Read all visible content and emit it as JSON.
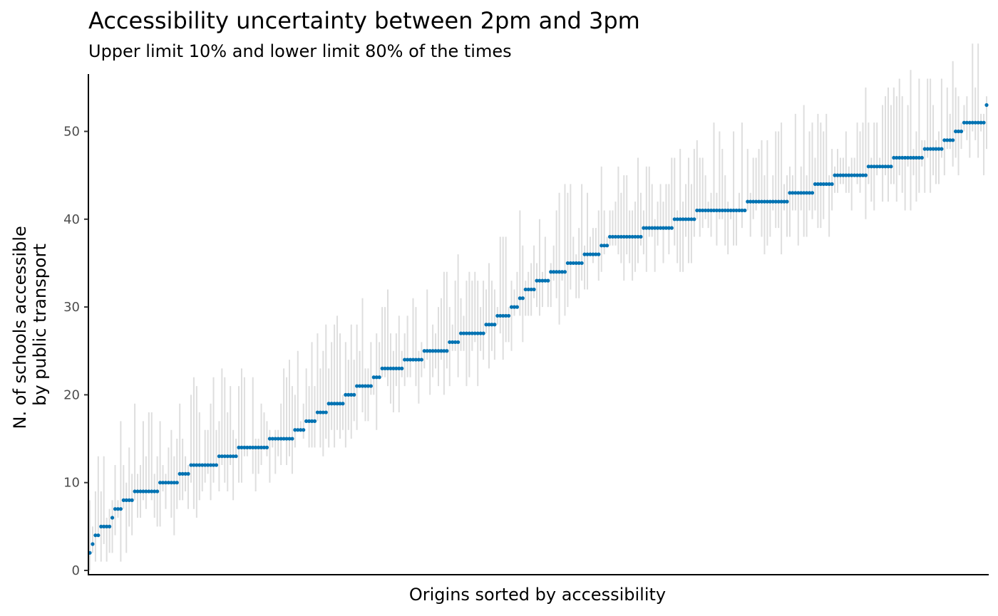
{
  "chart_data": {
    "type": "scatter",
    "title": "Accessibility uncertainty between 2pm and 3pm",
    "subtitle": "Upper limit 10% and lower limit 80% of the times",
    "xlabel": "Origins sorted by accessibility",
    "ylabel_lines": [
      "N. of schools accessible",
      "by public transport"
    ],
    "yticks": [
      0,
      10,
      20,
      30,
      40,
      50
    ],
    "ylim": [
      -0.6,
      56
    ],
    "grid": false,
    "x_ticks_shown": false,
    "colors": {
      "point": "#0072B2",
      "range": "#DEDEDE",
      "axis": "#000000",
      "tick_label": "#4D4D4D"
    },
    "levels": [
      {
        "y": 2,
        "n": 1
      },
      {
        "y": 3,
        "n": 1
      },
      {
        "y": 4,
        "n": 2
      },
      {
        "y": 5,
        "n": 4
      },
      {
        "y": 6,
        "n": 1
      },
      {
        "y": 7,
        "n": 3
      },
      {
        "y": 8,
        "n": 4
      },
      {
        "y": 9,
        "n": 9
      },
      {
        "y": 10,
        "n": 7
      },
      {
        "y": 11,
        "n": 4
      },
      {
        "y": 12,
        "n": 10
      },
      {
        "y": 13,
        "n": 7
      },
      {
        "y": 14,
        "n": 11
      },
      {
        "y": 15,
        "n": 9
      },
      {
        "y": 16,
        "n": 4
      },
      {
        "y": 17,
        "n": 4
      },
      {
        "y": 18,
        "n": 4
      },
      {
        "y": 19,
        "n": 6
      },
      {
        "y": 20,
        "n": 4
      },
      {
        "y": 21,
        "n": 6
      },
      {
        "y": 22,
        "n": 3
      },
      {
        "y": 23,
        "n": 8
      },
      {
        "y": 24,
        "n": 7
      },
      {
        "y": 25,
        "n": 9
      },
      {
        "y": 26,
        "n": 4
      },
      {
        "y": 27,
        "n": 9
      },
      {
        "y": 28,
        "n": 4
      },
      {
        "y": 29,
        "n": 5
      },
      {
        "y": 30,
        "n": 3
      },
      {
        "y": 31,
        "n": 2
      },
      {
        "y": 32,
        "n": 4
      },
      {
        "y": 33,
        "n": 5
      },
      {
        "y": 34,
        "n": 6
      },
      {
        "y": 35,
        "n": 6
      },
      {
        "y": 36,
        "n": 6
      },
      {
        "y": 37,
        "n": 3
      },
      {
        "y": 38,
        "n": 12
      },
      {
        "y": 39,
        "n": 11
      },
      {
        "y": 40,
        "n": 8
      },
      {
        "y": 41,
        "n": 18
      },
      {
        "y": 42,
        "n": 15
      },
      {
        "y": 43,
        "n": 9
      },
      {
        "y": 44,
        "n": 7
      },
      {
        "y": 45,
        "n": 12
      },
      {
        "y": 46,
        "n": 9
      },
      {
        "y": 47,
        "n": 11
      },
      {
        "y": 48,
        "n": 7
      },
      {
        "y": 49,
        "n": 4
      },
      {
        "y": 50,
        "n": 3
      },
      {
        "y": 51,
        "n": 8
      },
      {
        "y": 53,
        "n": 1
      }
    ],
    "range_lower_offset_min": 0,
    "range_lower_offset_max": 6,
    "range_upper_offset_min": 0,
    "range_upper_offset_max": 10
  }
}
